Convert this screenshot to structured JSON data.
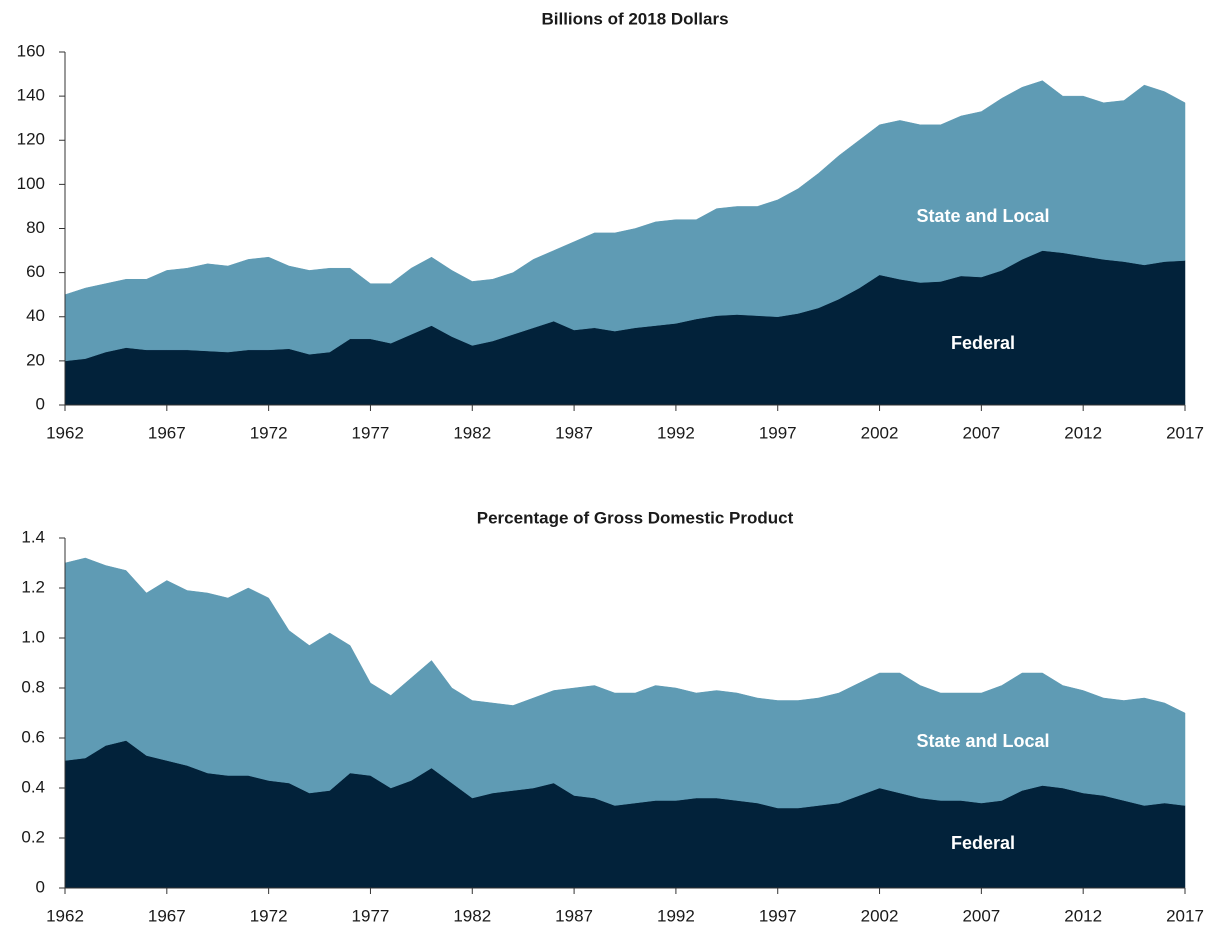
{
  "chart_data": [
    {
      "type": "stacked-area",
      "title": "Billions of 2018 Dollars",
      "x": [
        1962,
        1963,
        1964,
        1965,
        1966,
        1967,
        1968,
        1969,
        1970,
        1971,
        1972,
        1973,
        1974,
        1975,
        1976,
        1977,
        1978,
        1979,
        1980,
        1981,
        1982,
        1983,
        1984,
        1985,
        1986,
        1987,
        1988,
        1989,
        1990,
        1991,
        1992,
        1993,
        1994,
        1995,
        1996,
        1997,
        1998,
        1999,
        2000,
        2001,
        2002,
        2003,
        2004,
        2005,
        2006,
        2007,
        2008,
        2009,
        2010,
        2011,
        2012,
        2013,
        2014,
        2015,
        2016,
        2017
      ],
      "series": [
        {
          "name": "Federal",
          "color": "#02223a",
          "values": [
            20,
            21,
            24,
            26,
            25,
            25,
            25,
            24.5,
            24,
            25,
            25,
            25.5,
            23,
            24,
            30,
            30,
            28,
            32,
            36,
            31,
            27,
            29,
            32,
            35,
            38,
            34,
            35,
            33.5,
            35,
            36,
            37,
            39,
            40.5,
            41,
            40.5,
            40,
            41.5,
            44,
            48,
            53,
            59,
            57,
            55.5,
            56,
            58.5,
            58,
            61,
            66,
            70,
            69,
            67.5,
            66,
            65,
            63.5,
            65,
            65.5
          ]
        },
        {
          "name": "State and Local",
          "color": "#5f9bb4",
          "values": [
            30,
            32,
            31,
            31,
            32,
            36,
            37,
            39.5,
            39,
            41,
            42,
            37.5,
            38,
            38,
            32,
            25,
            27,
            30,
            31,
            30,
            29,
            28,
            28,
            31,
            32,
            40,
            43,
            44.5,
            45,
            47,
            47,
            45,
            48.5,
            49,
            49.5,
            53,
            56.5,
            61,
            65,
            67,
            68,
            72,
            71.5,
            71,
            72.5,
            75,
            78,
            78,
            77,
            71,
            72.5,
            71,
            73,
            81.5,
            77,
            71.5
          ]
        }
      ],
      "xlim": [
        1962,
        2017
      ],
      "xticks": [
        1962,
        1967,
        1972,
        1977,
        1982,
        1987,
        1992,
        1997,
        2002,
        2007,
        2012,
        2017
      ],
      "ylim": [
        0,
        160
      ],
      "yticks": [
        0,
        20,
        40,
        60,
        80,
        100,
        120,
        140,
        160
      ],
      "grid": false
    },
    {
      "type": "stacked-area",
      "title": "Percentage of Gross Domestic Product",
      "x": [
        1962,
        1963,
        1964,
        1965,
        1966,
        1967,
        1968,
        1969,
        1970,
        1971,
        1972,
        1973,
        1974,
        1975,
        1976,
        1977,
        1978,
        1979,
        1980,
        1981,
        1982,
        1983,
        1984,
        1985,
        1986,
        1987,
        1988,
        1989,
        1990,
        1991,
        1992,
        1993,
        1994,
        1995,
        1996,
        1997,
        1998,
        1999,
        2000,
        2001,
        2002,
        2003,
        2004,
        2005,
        2006,
        2007,
        2008,
        2009,
        2010,
        2011,
        2012,
        2013,
        2014,
        2015,
        2016,
        2017
      ],
      "series": [
        {
          "name": "Federal",
          "color": "#02223a",
          "values": [
            0.51,
            0.52,
            0.57,
            0.59,
            0.53,
            0.51,
            0.49,
            0.46,
            0.45,
            0.45,
            0.43,
            0.42,
            0.38,
            0.39,
            0.46,
            0.45,
            0.4,
            0.43,
            0.48,
            0.42,
            0.36,
            0.38,
            0.39,
            0.4,
            0.42,
            0.37,
            0.36,
            0.33,
            0.34,
            0.35,
            0.35,
            0.36,
            0.36,
            0.35,
            0.34,
            0.32,
            0.32,
            0.33,
            0.34,
            0.37,
            0.4,
            0.38,
            0.36,
            0.35,
            0.35,
            0.34,
            0.35,
            0.39,
            0.41,
            0.4,
            0.38,
            0.37,
            0.35,
            0.33,
            0.34,
            0.33
          ]
        },
        {
          "name": "State and Local",
          "color": "#5f9bb4",
          "values": [
            0.79,
            0.8,
            0.72,
            0.68,
            0.65,
            0.72,
            0.7,
            0.72,
            0.71,
            0.75,
            0.73,
            0.61,
            0.59,
            0.63,
            0.51,
            0.37,
            0.37,
            0.41,
            0.43,
            0.38,
            0.39,
            0.36,
            0.34,
            0.36,
            0.37,
            0.43,
            0.45,
            0.45,
            0.44,
            0.46,
            0.45,
            0.42,
            0.43,
            0.43,
            0.42,
            0.43,
            0.43,
            0.43,
            0.44,
            0.45,
            0.46,
            0.48,
            0.45,
            0.43,
            0.43,
            0.44,
            0.46,
            0.47,
            0.45,
            0.41,
            0.41,
            0.39,
            0.4,
            0.43,
            0.4,
            0.37
          ]
        }
      ],
      "xlim": [
        1962,
        2017
      ],
      "xticks": [
        1962,
        1967,
        1972,
        1977,
        1982,
        1987,
        1992,
        1997,
        2002,
        2007,
        2012,
        2017
      ],
      "ylim": [
        0,
        1.4
      ],
      "yticks": [
        0,
        0.2,
        0.4,
        0.6,
        0.8,
        {
          "value": 1,
          "label": "1.0"
        },
        1.2,
        1.4
      ],
      "grid": false
    }
  ]
}
